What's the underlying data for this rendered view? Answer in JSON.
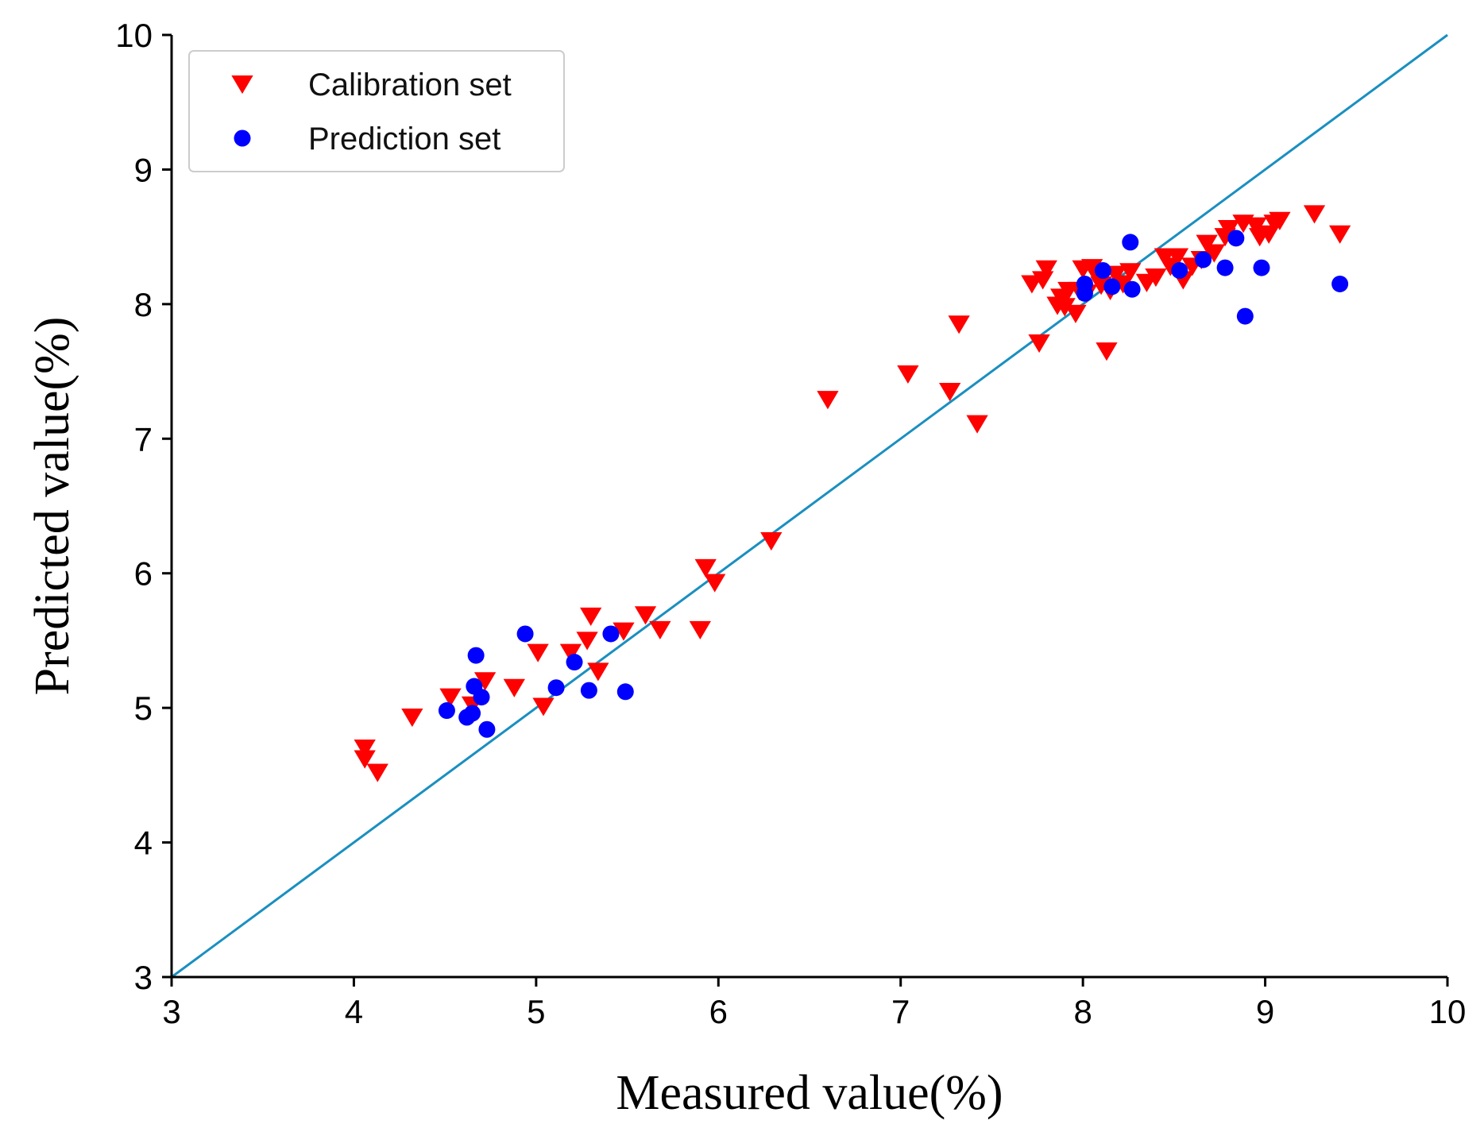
{
  "chart_data": {
    "type": "scatter",
    "title": "",
    "xlabel": "Measured value(%)",
    "ylabel": "Predicted value(%)",
    "xlim": [
      3,
      10
    ],
    "ylim": [
      3,
      10
    ],
    "xticks": [
      "3",
      "4",
      "5",
      "6",
      "7",
      "8",
      "9",
      "10"
    ],
    "yticks": [
      "3",
      "4",
      "5",
      "6",
      "7",
      "8",
      "9",
      "10"
    ],
    "grid": false,
    "legend_position": "top-left",
    "reference_line": {
      "from": [
        3,
        3
      ],
      "to": [
        10,
        10
      ],
      "color": "#1a8fc0"
    },
    "series": [
      {
        "name": "Calibration set",
        "marker": "triangle-down",
        "color": "#ff0000",
        "points": [
          [
            4.06,
            4.7
          ],
          [
            4.06,
            4.62
          ],
          [
            4.13,
            4.52
          ],
          [
            4.32,
            4.93
          ],
          [
            4.53,
            5.08
          ],
          [
            4.65,
            5.02
          ],
          [
            4.72,
            5.2
          ],
          [
            4.88,
            5.15
          ],
          [
            5.01,
            5.41
          ],
          [
            5.04,
            5.01
          ],
          [
            5.19,
            5.41
          ],
          [
            5.28,
            5.5
          ],
          [
            5.3,
            5.68
          ],
          [
            5.34,
            5.27
          ],
          [
            5.48,
            5.57
          ],
          [
            5.6,
            5.69
          ],
          [
            5.68,
            5.58
          ],
          [
            5.9,
            5.58
          ],
          [
            5.93,
            6.04
          ],
          [
            5.98,
            5.93
          ],
          [
            6.29,
            6.24
          ],
          [
            6.6,
            7.29
          ],
          [
            7.04,
            7.48
          ],
          [
            7.27,
            7.35
          ],
          [
            7.32,
            7.85
          ],
          [
            7.42,
            7.11
          ],
          [
            7.72,
            8.15
          ],
          [
            7.76,
            7.71
          ],
          [
            7.78,
            8.18
          ],
          [
            7.8,
            8.26
          ],
          [
            7.86,
            7.99
          ],
          [
            7.88,
            8.05
          ],
          [
            7.9,
            7.98
          ],
          [
            7.92,
            8.1
          ],
          [
            7.96,
            7.93
          ],
          [
            7.98,
            8.1
          ],
          [
            8.0,
            8.26
          ],
          [
            8.02,
            8.08
          ],
          [
            8.05,
            8.27
          ],
          [
            8.08,
            8.2
          ],
          [
            8.1,
            8.14
          ],
          [
            8.13,
            7.65
          ],
          [
            8.15,
            8.1
          ],
          [
            8.18,
            8.22
          ],
          [
            8.22,
            8.15
          ],
          [
            8.26,
            8.24
          ],
          [
            8.35,
            8.16
          ],
          [
            8.4,
            8.2
          ],
          [
            8.45,
            8.35
          ],
          [
            8.48,
            8.28
          ],
          [
            8.52,
            8.35
          ],
          [
            8.55,
            8.18
          ],
          [
            8.6,
            8.28
          ],
          [
            8.65,
            8.33
          ],
          [
            8.68,
            8.45
          ],
          [
            8.72,
            8.38
          ],
          [
            8.78,
            8.5
          ],
          [
            8.8,
            8.56
          ],
          [
            8.88,
            8.6
          ],
          [
            8.95,
            8.58
          ],
          [
            8.97,
            8.5
          ],
          [
            9.02,
            8.52
          ],
          [
            9.05,
            8.6
          ],
          [
            9.08,
            8.62
          ],
          [
            9.27,
            8.67
          ],
          [
            9.41,
            8.52
          ]
        ]
      },
      {
        "name": "Prediction set",
        "marker": "circle",
        "color": "#0000ff",
        "points": [
          [
            4.51,
            4.98
          ],
          [
            4.62,
            4.93
          ],
          [
            4.65,
            4.96
          ],
          [
            4.66,
            5.16
          ],
          [
            4.67,
            5.39
          ],
          [
            4.7,
            5.08
          ],
          [
            4.73,
            4.84
          ],
          [
            4.94,
            5.55
          ],
          [
            5.11,
            5.15
          ],
          [
            5.21,
            5.34
          ],
          [
            5.29,
            5.13
          ],
          [
            5.41,
            5.55
          ],
          [
            5.49,
            5.12
          ],
          [
            8.01,
            8.08
          ],
          [
            8.01,
            8.15
          ],
          [
            8.11,
            8.25
          ],
          [
            8.16,
            8.13
          ],
          [
            8.26,
            8.46
          ],
          [
            8.27,
            8.11
          ],
          [
            8.53,
            8.25
          ],
          [
            8.66,
            8.33
          ],
          [
            8.78,
            8.27
          ],
          [
            8.84,
            8.49
          ],
          [
            8.89,
            7.91
          ],
          [
            8.98,
            8.27
          ],
          [
            9.41,
            8.15
          ]
        ]
      }
    ]
  }
}
